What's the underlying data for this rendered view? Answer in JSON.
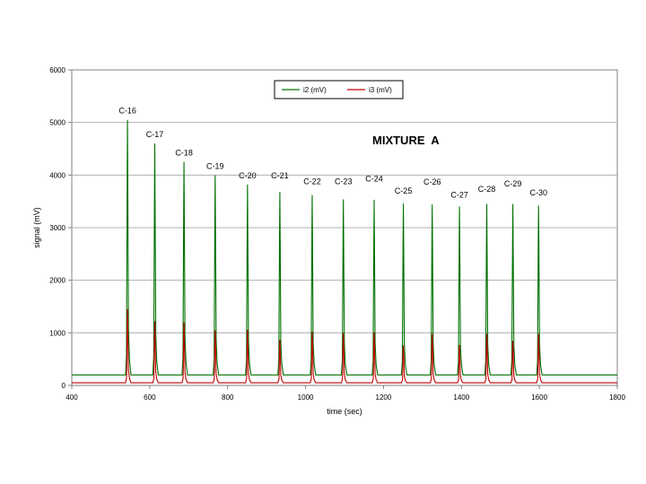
{
  "chart_data": {
    "type": "line",
    "xlabel": "time (sec)",
    "ylabel": "signal (mV)",
    "xlim": [
      400,
      1800
    ],
    "ylim": [
      0,
      6000
    ],
    "x_ticks": [
      400,
      600,
      800,
      1000,
      1200,
      1400,
      1600,
      1800
    ],
    "y_ticks": [
      0,
      1000,
      2000,
      3000,
      4000,
      5000,
      6000
    ],
    "grid": "horizontal",
    "legend_position": "top-center",
    "annotation": "MIXTURE  A",
    "baselines": {
      "i2 (mV)": 200,
      "i3 (mV)": 50
    },
    "series": [
      {
        "name": "i2 (mV)",
        "color": "#007000",
        "peaks": [
          {
            "x": 543,
            "y": 5050
          },
          {
            "x": 613,
            "y": 4600
          },
          {
            "x": 688,
            "y": 4250
          },
          {
            "x": 768,
            "y": 4000
          },
          {
            "x": 851,
            "y": 3820
          },
          {
            "x": 934,
            "y": 3680
          },
          {
            "x": 1017,
            "y": 3620
          },
          {
            "x": 1097,
            "y": 3540
          },
          {
            "x": 1176,
            "y": 3530
          },
          {
            "x": 1251,
            "y": 3460
          },
          {
            "x": 1325,
            "y": 3440
          },
          {
            "x": 1395,
            "y": 3400
          },
          {
            "x": 1465,
            "y": 3450
          },
          {
            "x": 1532,
            "y": 3450
          },
          {
            "x": 1598,
            "y": 3420
          }
        ]
      },
      {
        "name": "i3 (mV)",
        "color": "#c00000",
        "peaks": [
          {
            "x": 543,
            "y": 1450
          },
          {
            "x": 613,
            "y": 1220
          },
          {
            "x": 688,
            "y": 1200
          },
          {
            "x": 768,
            "y": 1050
          },
          {
            "x": 851,
            "y": 1060
          },
          {
            "x": 934,
            "y": 870
          },
          {
            "x": 1017,
            "y": 1020
          },
          {
            "x": 1097,
            "y": 1000
          },
          {
            "x": 1176,
            "y": 1010
          },
          {
            "x": 1251,
            "y": 760
          },
          {
            "x": 1325,
            "y": 980
          },
          {
            "x": 1395,
            "y": 770
          },
          {
            "x": 1465,
            "y": 980
          },
          {
            "x": 1532,
            "y": 850
          },
          {
            "x": 1598,
            "y": 980
          }
        ]
      }
    ],
    "peak_labels": [
      {
        "text": "C-16",
        "x": 543,
        "y": 5170
      },
      {
        "text": "C-17",
        "x": 613,
        "y": 4720
      },
      {
        "text": "C-18",
        "x": 688,
        "y": 4370
      },
      {
        "text": "C-19",
        "x": 768,
        "y": 4120
      },
      {
        "text": "C-20",
        "x": 851,
        "y": 3940
      },
      {
        "text": "C-21",
        "x": 934,
        "y": 3940
      },
      {
        "text": "C-22",
        "x": 1017,
        "y": 3830
      },
      {
        "text": "C-23",
        "x": 1097,
        "y": 3830
      },
      {
        "text": "C-24",
        "x": 1176,
        "y": 3880
      },
      {
        "text": "C-25",
        "x": 1251,
        "y": 3650
      },
      {
        "text": "C-26",
        "x": 1325,
        "y": 3820
      },
      {
        "text": "C-27",
        "x": 1395,
        "y": 3570
      },
      {
        "text": "C-28",
        "x": 1465,
        "y": 3680
      },
      {
        "text": "C-29",
        "x": 1532,
        "y": 3780
      },
      {
        "text": "C-30",
        "x": 1598,
        "y": 3610
      }
    ]
  }
}
